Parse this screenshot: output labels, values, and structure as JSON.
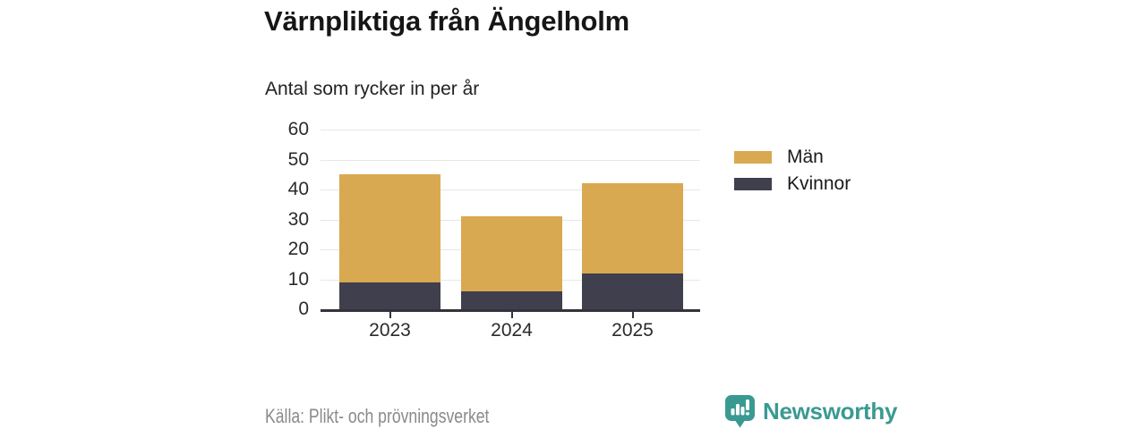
{
  "header": {
    "title": "Värnpliktiga från Ängelholm",
    "subtitle": "Antal som rycker in per år"
  },
  "chart_data": {
    "type": "bar",
    "stacked": true,
    "title": "Värnpliktiga från Ängelholm",
    "subtitle": "Antal som rycker in per år",
    "categories": [
      "2023",
      "2024",
      "2025"
    ],
    "series": [
      {
        "name": "Män",
        "color": "#d9a951",
        "values": [
          36,
          25,
          30
        ]
      },
      {
        "name": "Kvinnor",
        "color": "#3f3f4d",
        "values": [
          9,
          6,
          12
        ]
      }
    ],
    "stack_order_bottom_to_top": [
      "Kvinnor",
      "Män"
    ],
    "totals": [
      45,
      31,
      42
    ],
    "xlabel": "",
    "ylabel": "",
    "ylim": [
      0,
      60
    ],
    "yticks": [
      0,
      10,
      20,
      30,
      40,
      50,
      60
    ],
    "grid": true,
    "legend_position": "right"
  },
  "legend": {
    "items": [
      {
        "label": "Män",
        "color": "#d9a951"
      },
      {
        "label": "Kvinnor",
        "color": "#3f3f4d"
      }
    ]
  },
  "footer": {
    "source": "Källa: Plikt- och prövningsverket",
    "brand": "Newsworthy",
    "brand_color": "#3a9a92"
  },
  "colors": {
    "men": "#d9a951",
    "women": "#3f3f4d",
    "grid": "#e7e7e7",
    "axis": "#33333b",
    "brand": "#3a9a92"
  }
}
